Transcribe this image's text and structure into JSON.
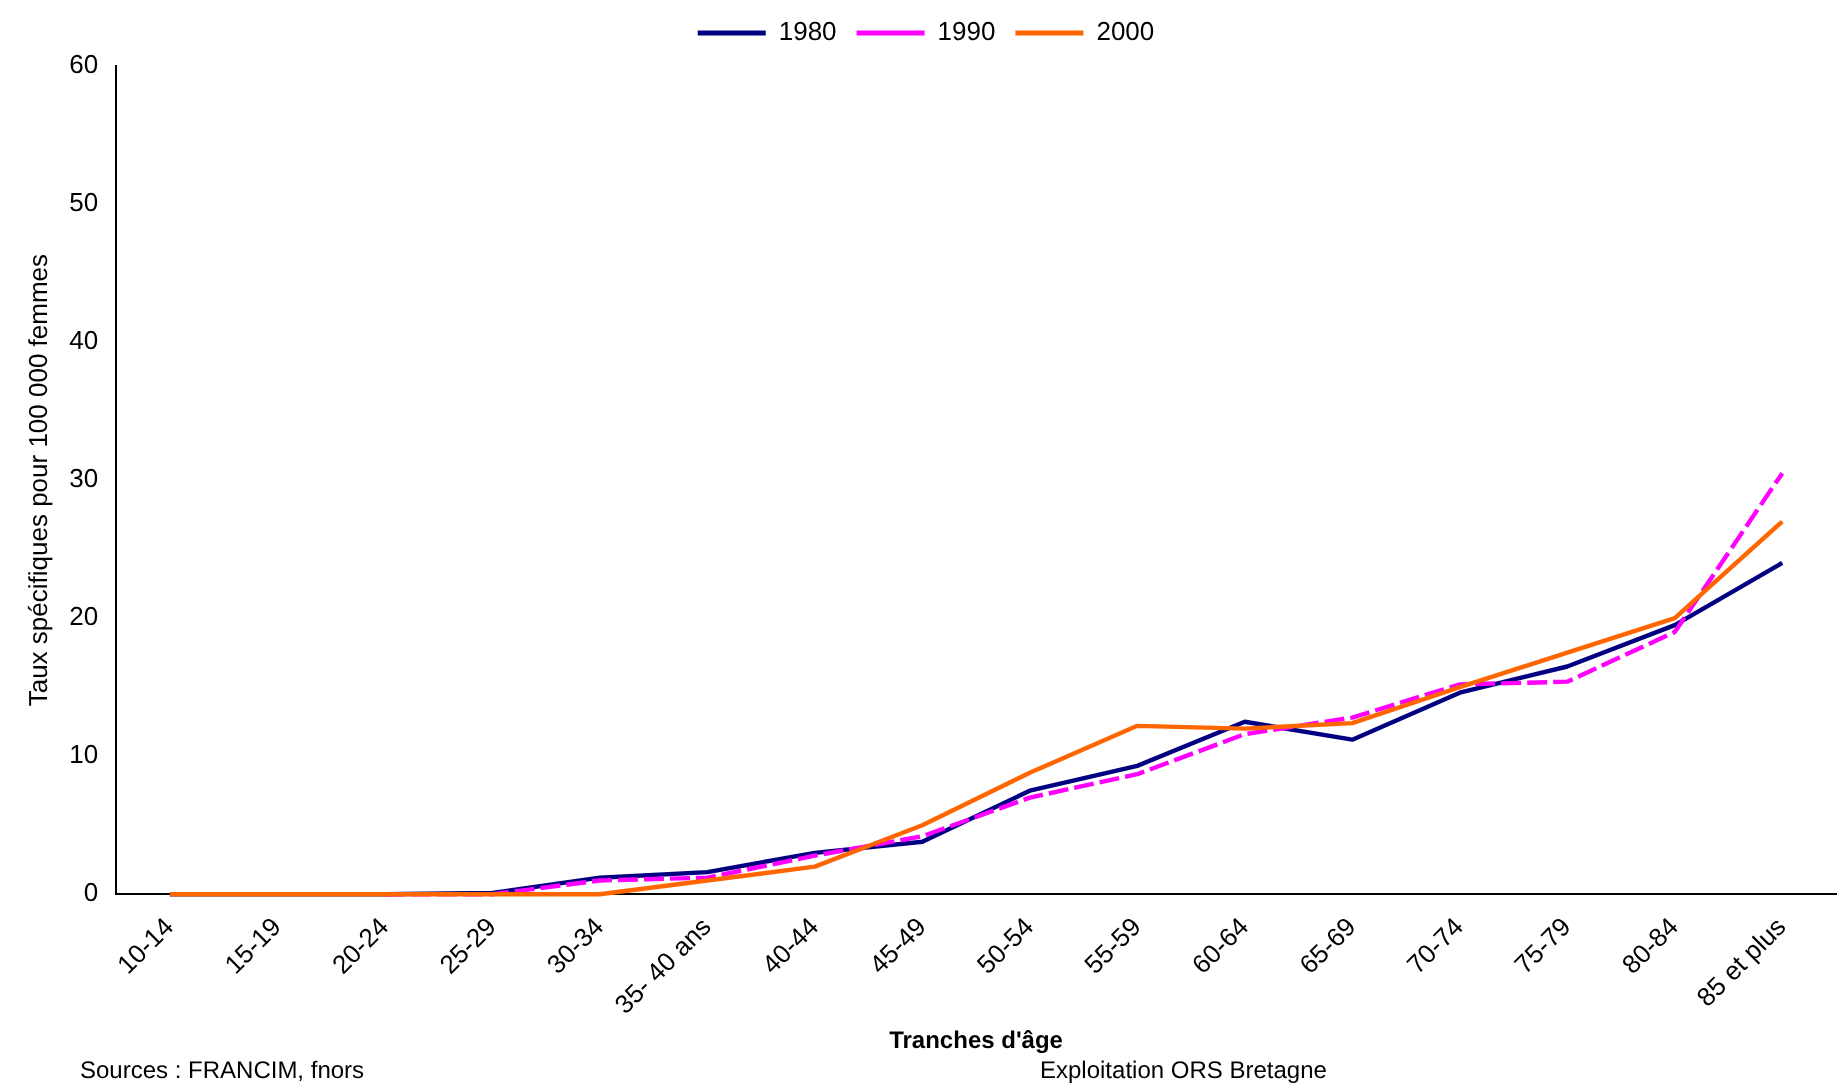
{
  "chart_data": {
    "type": "line",
    "xlabel": "Tranches d'âge",
    "ylabel": "Taux spécifiques pour 100 000 femmes",
    "categories": [
      "10-14",
      "15-19",
      "20-24",
      "25-29",
      "30-34",
      "35- 40 ans",
      "40-44",
      "45-49",
      "50-54",
      "55-59",
      "60-64",
      "65-69",
      "70-74",
      "75-79",
      "80-84",
      "85 et plus"
    ],
    "series": [
      {
        "name": "1980",
        "color": "#000080",
        "line_style": "solid",
        "values": [
          0,
          0,
          0,
          0.1,
          1.2,
          1.6,
          3,
          3.8,
          7.5,
          9.3,
          12.5,
          11.2,
          14.6,
          16.5,
          19.5,
          24
        ]
      },
      {
        "name": "1990",
        "color": "#ff00ff",
        "line_style": "dashed",
        "values": [
          null,
          null,
          0,
          0,
          1,
          1.2,
          2.8,
          4.2,
          7,
          8.7,
          11.6,
          12.8,
          15.2,
          15.4,
          19,
          30.5
        ]
      },
      {
        "name": "2000",
        "color": "#ff6600",
        "line_style": "solid",
        "values": [
          0,
          0,
          0,
          0,
          0,
          1,
          2,
          5,
          8.8,
          12.2,
          12,
          12.4,
          15,
          17.5,
          20,
          27
        ]
      }
    ],
    "ylim": [
      0,
      60
    ],
    "yticks": [
      0,
      10,
      20,
      30,
      40,
      50,
      60
    ],
    "grid": false,
    "legend": "top",
    "marker": "none",
    "annotations": [
      "Sources : FRANCIM, fnors",
      "Exploitation ORS Bretagne"
    ]
  }
}
